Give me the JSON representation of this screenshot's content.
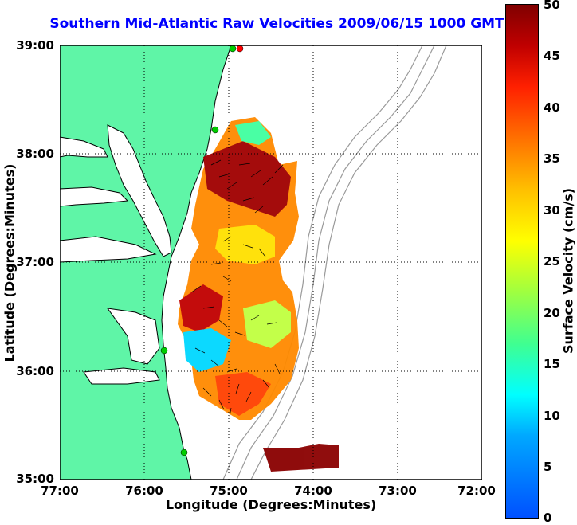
{
  "title": "Southern Mid-Atlantic Raw Velocities 2009/06/15 1000 GMT",
  "xaxis": {
    "label": "Longitude (Degrees:Minutes)",
    "ticks": [
      "77:00",
      "76:00",
      "75:00",
      "74:00",
      "73:00",
      "72:00"
    ]
  },
  "yaxis": {
    "label": "Latitude (Degrees:Minutes)",
    "ticks": [
      "39:00",
      "38:00",
      "37:00",
      "36:00",
      "35:00"
    ]
  },
  "colorbar": {
    "label": "Surface Velocity (cm/s)",
    "ticks": [
      "50",
      "45",
      "40",
      "35",
      "30",
      "25",
      "20",
      "15",
      "10",
      "5",
      "0"
    ],
    "min": 0,
    "max": 50
  },
  "colors": {
    "land": "#5ff5a7",
    "coast": "#000000",
    "bathymetry": "#9a9a9a",
    "title": "#0000ff",
    "station_marker": "#00cc00",
    "station_marker_alt": "#ff0000"
  }
}
